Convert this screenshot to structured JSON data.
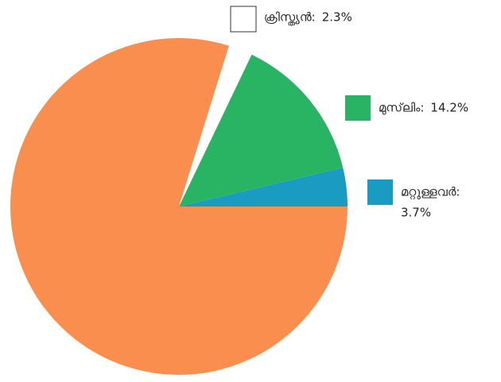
{
  "chart_data": {
    "type": "pie",
    "categories": [
      "മറ്റുള്ളവർ:",
      "മുസ്‌ലിം:",
      "ക്രിസ്ത്യൻ:",
      null
    ],
    "values": [
      3.7,
      14.2,
      2.3,
      79.8
    ],
    "value_labels": [
      "3.7%",
      "14.2%",
      "2.3%",
      null
    ],
    "colors": [
      "#1a9bc1",
      "#28b463",
      "#ffffff",
      "#f98e4e"
    ]
  }
}
